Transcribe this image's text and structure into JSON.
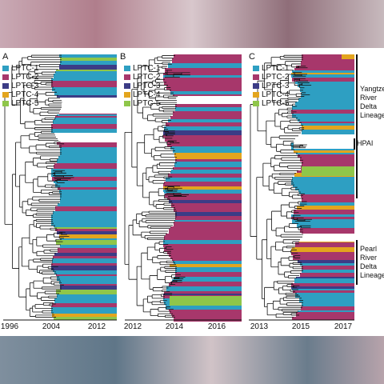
{
  "panels": [
    {
      "letter": "A",
      "legend": [
        "LPTC-1",
        "LPTC-2",
        "LPTC-3",
        "LPTC-4",
        "LPTC-5"
      ],
      "axis_ticks": [
        "1996",
        "2004",
        "2012"
      ]
    },
    {
      "letter": "B",
      "legend": [
        "LPTC-1",
        "LPTC-2",
        "LPTC-3",
        "LPTC-4",
        "LPTC-5"
      ],
      "axis_ticks": [
        "2012",
        "2014",
        "2016"
      ]
    },
    {
      "letter": "C",
      "legend": [
        "LPTC-1",
        "LPTC-2",
        "LPTC-3",
        "LPTC-4",
        "LPTC-5"
      ],
      "axis_ticks": [
        "2013",
        "2015",
        "2017"
      ],
      "clade_labels": {
        "yangtze": [
          "Yangtze",
          "River",
          "Delta",
          "Lineage"
        ],
        "hpai": "HPAI",
        "pearl": [
          "Pearl",
          "River",
          "Delta",
          "Lineage"
        ]
      }
    }
  ],
  "colors": {
    "LPTC-1": "#2e9fc2",
    "LPTC-2": "#a7376b",
    "LPTC-3": "#3c3c86",
    "LPTC-4": "#e3a51e",
    "LPTC-5": "#8fc64a"
  }
}
